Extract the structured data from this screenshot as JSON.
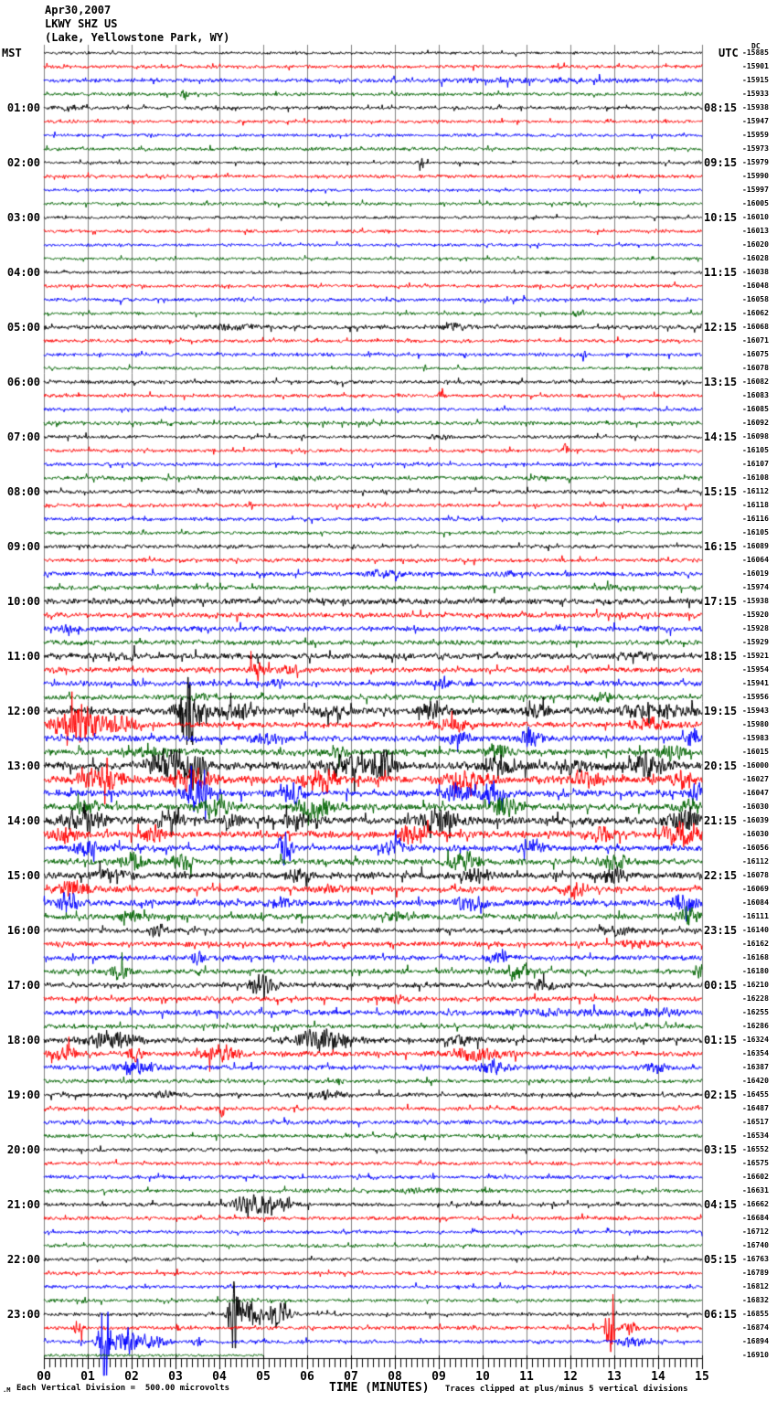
{
  "header": {
    "date": "Apr30,2007",
    "station": "LKWY SHZ US",
    "location": "(Lake, Yellowstone Park, WY)"
  },
  "axes": {
    "left_label": "MST",
    "right_label": "UTC",
    "dc_label": "DC",
    "xlabel": "TIME (MINUTES)",
    "x_ticks": [
      "00",
      "01",
      "02",
      "03",
      "04",
      "05",
      "06",
      "07",
      "08",
      "09",
      "10",
      "11",
      "12",
      "13",
      "14",
      "15"
    ],
    "minutes_per_row": 15,
    "minor_ticks_per_minute": 8
  },
  "footer": {
    "left": "Each Vertical Division =  500.00 microvolts",
    "right": "Traces clipped at plus/minus 5 vertical divisions",
    "watermark": ".M"
  },
  "colors": {
    "trace_cycle": [
      "#000000",
      "#ff0000",
      "#0000ff",
      "#006400"
    ],
    "grid": "#808080",
    "axis": "#000000"
  },
  "chart_data": {
    "type": "line",
    "subtype": "helicorder-seismogram",
    "title": "LKWY SHZ US Apr30,2007 helicorder, 15 minutes per trace line",
    "x_range_minutes": [
      0,
      15
    ],
    "clip_divisions": 5,
    "microvolts_per_division": 500.0,
    "rows": [
      {
        "mst": "",
        "utc": "UTC",
        "dc": -15885,
        "amp": 1.0
      },
      {
        "dc": -15901,
        "amp": 1.3
      },
      {
        "dc": -15915,
        "amp": 1.5,
        "ev": [
          [
            11,
            2.5,
            0.8
          ]
        ]
      },
      {
        "dc": -15933,
        "amp": 1.3,
        "ev": [
          [
            3.2,
            0.06,
            5
          ]
        ]
      },
      {
        "mst": "01:00",
        "utc": "08:15",
        "dc": -15938,
        "amp": 1.3,
        "ev": [
          [
            0.6,
            0.3,
            1.5
          ]
        ]
      },
      {
        "dc": -15947,
        "amp": 1.2
      },
      {
        "dc": -15959,
        "amp": 1.2
      },
      {
        "dc": -15973,
        "amp": 1.3
      },
      {
        "mst": "02:00",
        "utc": "09:15",
        "dc": -15979,
        "amp": 1.1,
        "ev": [
          [
            8.6,
            0.05,
            7
          ]
        ]
      },
      {
        "dc": -15990,
        "amp": 1.3
      },
      {
        "dc": -15997,
        "amp": 1.1
      },
      {
        "dc": -16005,
        "amp": 1.2
      },
      {
        "mst": "03:00",
        "utc": "10:15",
        "dc": -16010,
        "amp": 1.1
      },
      {
        "dc": -16013,
        "amp": 1.2
      },
      {
        "dc": -16020,
        "amp": 1.1
      },
      {
        "dc": -16028,
        "amp": 1.1
      },
      {
        "mst": "04:00",
        "utc": "11:15",
        "dc": -16038,
        "amp": 1.1
      },
      {
        "dc": -16048,
        "amp": 1.3
      },
      {
        "dc": -16058,
        "amp": 1.4
      },
      {
        "dc": -16062,
        "amp": 1.2,
        "ev": [
          [
            12.2,
            0.15,
            2
          ]
        ]
      },
      {
        "mst": "05:00",
        "utc": "12:15",
        "dc": -16068,
        "amp": 1.6,
        "ev": [
          [
            4.2,
            0.8,
            1.3
          ],
          [
            9.3,
            0.3,
            2.2
          ]
        ]
      },
      {
        "dc": -16071,
        "amp": 1.3
      },
      {
        "dc": -16075,
        "amp": 1.3,
        "ev": [
          [
            12.3,
            0.05,
            5
          ]
        ]
      },
      {
        "dc": -16078,
        "amp": 1.2
      },
      {
        "mst": "06:00",
        "utc": "13:15",
        "dc": -16082,
        "amp": 1.4
      },
      {
        "dc": -16083,
        "amp": 1.3,
        "ev": [
          [
            9.05,
            0.05,
            8
          ]
        ]
      },
      {
        "dc": -16085,
        "amp": 1.3
      },
      {
        "dc": -16092,
        "amp": 1.5
      },
      {
        "mst": "07:00",
        "utc": "14:15",
        "dc": -16098,
        "amp": 1.3,
        "ev": [
          [
            9.0,
            0.2,
            1.5
          ]
        ]
      },
      {
        "dc": -16105,
        "amp": 1.3,
        "ev": [
          [
            11.9,
            0.06,
            5
          ]
        ]
      },
      {
        "dc": -16107,
        "amp": 1.4
      },
      {
        "dc": -16108,
        "amp": 1.5,
        "ev": [
          [
            11.3,
            0.2,
            1.5
          ]
        ]
      },
      {
        "mst": "08:00",
        "utc": "15:15",
        "dc": -16112,
        "amp": 1.5
      },
      {
        "dc": -16118,
        "amp": 1.4
      },
      {
        "dc": -16116,
        "amp": 1.4
      },
      {
        "dc": -16105,
        "amp": 1.3
      },
      {
        "mst": "09:00",
        "utc": "16:15",
        "dc": -16089,
        "amp": 1.4
      },
      {
        "dc": -16064,
        "amp": 1.5
      },
      {
        "dc": -16019,
        "amp": 1.7,
        "ev": [
          [
            7.8,
            0.4,
            2.5
          ],
          [
            10.6,
            0.15,
            2.5
          ]
        ]
      },
      {
        "dc": -15974,
        "amp": 1.7,
        "ev": [
          [
            13.0,
            0.3,
            1.5
          ]
        ]
      },
      {
        "mst": "10:00",
        "utc": "17:15",
        "dc": -15938,
        "amp": 2.3
      },
      {
        "dc": -15920,
        "amp": 1.9
      },
      {
        "dc": -15928,
        "amp": 2.0,
        "ev": [
          [
            0.7,
            0.3,
            2
          ]
        ]
      },
      {
        "dc": -15929,
        "amp": 1.8
      },
      {
        "mst": "11:00",
        "utc": "18:15",
        "dc": -15921,
        "amp": 2.3,
        "ev": [
          [
            1.8,
            0.4,
            1.5
          ],
          [
            13.5,
            0.3,
            2.5
          ]
        ]
      },
      {
        "dc": -15954,
        "amp": 2.0,
        "ev": [
          [
            4.85,
            0.15,
            7
          ],
          [
            5.6,
            0.2,
            3
          ]
        ]
      },
      {
        "dc": -15941,
        "amp": 2.0,
        "ev": [
          [
            5.3,
            0.2,
            3
          ],
          [
            9.0,
            0.3,
            2
          ]
        ]
      },
      {
        "dc": -15956,
        "amp": 1.9,
        "ev": [
          [
            3.6,
            0.2,
            3
          ],
          [
            12.8,
            0.25,
            3
          ]
        ]
      },
      {
        "mst": "12:00",
        "utc": "19:15",
        "dc": -15943,
        "amp": 2.6,
        "ev": [
          [
            3.3,
            0.22,
            40
          ],
          [
            4.3,
            0.5,
            5
          ],
          [
            6.5,
            0.4,
            3
          ],
          [
            8.9,
            0.3,
            6
          ],
          [
            11.2,
            0.25,
            5
          ],
          [
            13.9,
            0.7,
            5
          ]
        ]
      },
      {
        "dc": -15980,
        "amp": 2.1,
        "ev": [
          [
            0.75,
            0.5,
            16
          ],
          [
            1.8,
            0.4,
            5
          ],
          [
            9.3,
            0.4,
            4
          ],
          [
            13.9,
            0.5,
            4
          ]
        ]
      },
      {
        "dc": -15983,
        "amp": 2.3,
        "ev": [
          [
            5.0,
            0.3,
            3
          ],
          [
            9.4,
            0.3,
            5
          ],
          [
            11.1,
            0.25,
            5
          ],
          [
            14.8,
            0.15,
            5
          ]
        ]
      },
      {
        "dc": -16015,
        "amp": 2.3,
        "ev": [
          [
            2.5,
            0.4,
            4
          ],
          [
            6.7,
            0.3,
            3
          ],
          [
            10.3,
            0.25,
            6
          ],
          [
            14.3,
            0.3,
            5
          ]
        ]
      },
      {
        "mst": "13:00",
        "utc": "20:15",
        "dc": -16000,
        "amp": 3.0,
        "ev": [
          [
            2.9,
            0.5,
            10
          ],
          [
            3.4,
            0.3,
            12
          ],
          [
            6.9,
            0.5,
            8
          ],
          [
            7.7,
            0.3,
            9
          ],
          [
            10.5,
            0.4,
            6
          ],
          [
            12.0,
            0.3,
            5
          ],
          [
            13.7,
            0.5,
            8
          ]
        ]
      },
      {
        "dc": -16027,
        "amp": 2.8,
        "ev": [
          [
            1.3,
            0.5,
            8
          ],
          [
            3.4,
            0.4,
            10
          ],
          [
            6.3,
            0.4,
            8
          ],
          [
            9.6,
            0.5,
            6
          ],
          [
            12.4,
            0.3,
            5
          ],
          [
            14.5,
            0.3,
            5
          ]
        ]
      },
      {
        "dc": -16047,
        "amp": 2.6,
        "ev": [
          [
            3.5,
            0.3,
            10
          ],
          [
            5.7,
            0.25,
            8
          ],
          [
            9.4,
            0.3,
            6
          ],
          [
            10.2,
            0.25,
            8
          ],
          [
            14.9,
            0.2,
            6
          ]
        ]
      },
      {
        "dc": -16030,
        "amp": 2.6,
        "ev": [
          [
            1.0,
            0.3,
            4
          ],
          [
            3.9,
            0.3,
            6
          ],
          [
            6.1,
            0.4,
            8
          ],
          [
            10.5,
            0.25,
            10
          ],
          [
            14.7,
            0.25,
            5
          ]
        ]
      },
      {
        "mst": "14:00",
        "utc": "21:15",
        "dc": -16039,
        "amp": 2.8,
        "ev": [
          [
            0.9,
            0.4,
            8
          ],
          [
            2.9,
            0.25,
            10
          ],
          [
            4.3,
            0.2,
            6
          ],
          [
            5.7,
            0.25,
            6
          ],
          [
            9.0,
            0.4,
            8
          ],
          [
            14.6,
            0.3,
            10
          ]
        ]
      },
      {
        "dc": -16030,
        "amp": 2.6,
        "ev": [
          [
            0.5,
            0.3,
            5
          ],
          [
            2.5,
            0.25,
            6
          ],
          [
            8.4,
            0.3,
            6
          ],
          [
            12.7,
            0.25,
            5
          ],
          [
            14.5,
            0.4,
            9
          ]
        ]
      },
      {
        "dc": -16056,
        "amp": 2.3,
        "ev": [
          [
            1.0,
            0.3,
            4
          ],
          [
            5.5,
            0.15,
            12
          ],
          [
            8.0,
            0.25,
            6
          ],
          [
            11.1,
            0.25,
            6
          ]
        ]
      },
      {
        "dc": -16112,
        "amp": 2.3,
        "ev": [
          [
            2.0,
            0.25,
            6
          ],
          [
            3.1,
            0.25,
            6
          ],
          [
            9.6,
            0.4,
            6
          ],
          [
            13.0,
            0.3,
            4
          ]
        ]
      },
      {
        "mst": "15:00",
        "utc": "22:15",
        "dc": -16078,
        "amp": 2.5,
        "ev": [
          [
            1.5,
            0.4,
            4
          ],
          [
            5.8,
            0.3,
            4
          ],
          [
            9.8,
            0.3,
            4
          ],
          [
            13.0,
            0.3,
            5
          ]
        ]
      },
      {
        "dc": -16069,
        "amp": 2.3,
        "ev": [
          [
            0.65,
            0.3,
            6
          ],
          [
            6.5,
            0.3,
            3
          ],
          [
            12.1,
            0.25,
            6
          ]
        ]
      },
      {
        "dc": -16084,
        "amp": 2.3,
        "ev": [
          [
            0.55,
            0.2,
            9
          ],
          [
            5.4,
            0.3,
            3
          ],
          [
            9.7,
            0.3,
            6
          ],
          [
            14.6,
            0.25,
            6
          ]
        ]
      },
      {
        "dc": -16111,
        "amp": 2.1,
        "ev": [
          [
            2.0,
            0.3,
            3
          ],
          [
            8.0,
            0.3,
            3
          ],
          [
            14.7,
            0.25,
            6
          ]
        ]
      },
      {
        "mst": "16:00",
        "utc": "23:15",
        "dc": -16140,
        "amp": 1.9,
        "ev": [
          [
            2.55,
            0.2,
            5
          ],
          [
            13.0,
            0.3,
            3
          ]
        ]
      },
      {
        "dc": -16162,
        "amp": 1.9,
        "ev": [
          [
            13.5,
            0.3,
            3
          ]
        ]
      },
      {
        "dc": -16168,
        "amp": 1.9,
        "ev": [
          [
            3.5,
            0.15,
            5
          ],
          [
            10.35,
            0.25,
            5
          ]
        ]
      },
      {
        "dc": -16180,
        "amp": 1.9,
        "ev": [
          [
            1.75,
            0.25,
            5
          ],
          [
            10.8,
            0.3,
            5
          ],
          [
            14.95,
            0.15,
            4
          ]
        ]
      },
      {
        "mst": "17:00",
        "utc": "00:15",
        "dc": -16210,
        "amp": 1.9,
        "ev": [
          [
            5.0,
            0.25,
            10
          ],
          [
            11.4,
            0.3,
            3
          ]
        ]
      },
      {
        "dc": -16228,
        "amp": 1.8,
        "ev": [
          [
            8.0,
            0.3,
            2.5
          ]
        ]
      },
      {
        "dc": -16255,
        "amp": 2.0,
        "ev": [
          [
            11.5,
            1.2,
            1.5
          ],
          [
            14.0,
            0.5,
            2
          ]
        ]
      },
      {
        "dc": -16286,
        "amp": 1.7
      },
      {
        "mst": "18:00",
        "utc": "01:15",
        "dc": -16324,
        "amp": 2.0,
        "ev": [
          [
            1.6,
            0.6,
            6
          ],
          [
            6.4,
            0.6,
            8
          ],
          [
            9.6,
            0.25,
            4
          ]
        ]
      },
      {
        "dc": -16354,
        "amp": 2.0,
        "ev": [
          [
            0.45,
            0.25,
            6
          ],
          [
            2.1,
            0.15,
            5
          ],
          [
            4.0,
            0.35,
            7
          ],
          [
            9.9,
            0.6,
            4
          ]
        ]
      },
      {
        "dc": -16387,
        "amp": 1.8,
        "ev": [
          [
            2.1,
            0.4,
            5
          ],
          [
            10.2,
            0.35,
            5
          ],
          [
            14.0,
            0.3,
            3
          ]
        ]
      },
      {
        "dc": -16420,
        "amp": 1.6
      },
      {
        "mst": "19:00",
        "utc": "02:15",
        "dc": -16455,
        "amp": 1.6,
        "ev": [
          [
            2.8,
            0.3,
            2
          ],
          [
            6.5,
            0.4,
            2.5
          ]
        ]
      },
      {
        "dc": -16487,
        "amp": 1.5,
        "ev": [
          [
            4.05,
            0.06,
            6
          ]
        ]
      },
      {
        "dc": -16517,
        "amp": 1.6
      },
      {
        "dc": -16534,
        "amp": 1.5
      },
      {
        "mst": "20:00",
        "utc": "03:15",
        "dc": -16552,
        "amp": 1.4
      },
      {
        "dc": -16575,
        "amp": 1.4
      },
      {
        "dc": -16602,
        "amp": 1.4
      },
      {
        "dc": -16631,
        "amp": 1.4,
        "ev": [
          [
            8.5,
            0.7,
            1.2
          ]
        ]
      },
      {
        "mst": "21:00",
        "utc": "04:15",
        "dc": -16662,
        "amp": 1.4,
        "ev": [
          [
            4.75,
            0.4,
            9
          ],
          [
            5.4,
            0.3,
            4
          ]
        ]
      },
      {
        "dc": -16684,
        "amp": 1.4
      },
      {
        "dc": -16712,
        "amp": 1.3
      },
      {
        "dc": -16740,
        "amp": 1.3
      },
      {
        "mst": "22:00",
        "utc": "05:15",
        "dc": -16763,
        "amp": 1.3
      },
      {
        "dc": -16789,
        "amp": 1.3
      },
      {
        "dc": -16812,
        "amp": 1.3
      },
      {
        "dc": -16832,
        "amp": 1.3
      },
      {
        "mst": "23:00",
        "utc": "06:15",
        "dc": -16855,
        "amp": 1.3,
        "ev": [
          [
            4.32,
            0.1,
            40
          ],
          [
            4.7,
            0.25,
            9
          ],
          [
            5.35,
            0.22,
            11
          ]
        ]
      },
      {
        "dc": -16874,
        "amp": 1.4,
        "ev": [
          [
            0.78,
            0.12,
            6
          ],
          [
            3.05,
            0.05,
            4
          ],
          [
            12.9,
            0.1,
            22
          ],
          [
            13.35,
            0.2,
            4
          ]
        ]
      },
      {
        "dc": -16894,
        "amp": 1.4,
        "ev": [
          [
            1.38,
            0.12,
            40
          ],
          [
            1.9,
            0.35,
            9
          ],
          [
            2.5,
            0.3,
            4
          ],
          [
            3.5,
            0.1,
            3
          ],
          [
            13.4,
            0.25,
            4
          ]
        ]
      },
      {
        "dc": -16910,
        "amp": 1.0,
        "end": 5
      }
    ]
  }
}
